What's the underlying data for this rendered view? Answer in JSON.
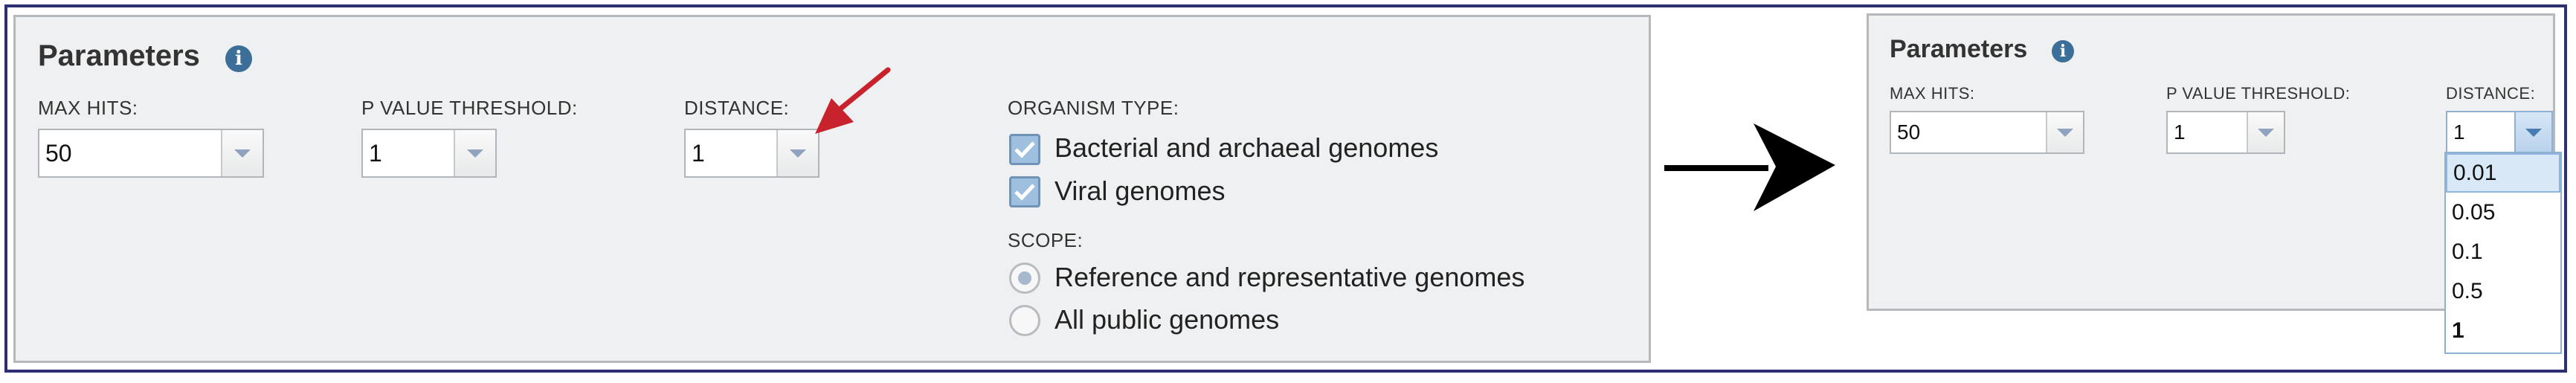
{
  "left_panel": {
    "title": "Parameters",
    "info_icon": "info-icon",
    "max_hits": {
      "label": "MAX HITS:",
      "value": "50"
    },
    "p_value": {
      "label": "P VALUE THRESHOLD:",
      "value": "1"
    },
    "distance": {
      "label": "DISTANCE:",
      "value": "1"
    },
    "organism_type": {
      "label": "ORGANISM TYPE:",
      "options": [
        {
          "label": "Bacterial and archaeal genomes",
          "checked": true
        },
        {
          "label": "Viral genomes",
          "checked": true
        }
      ]
    },
    "scope": {
      "label": "SCOPE:",
      "options": [
        {
          "label": "Reference and representative genomes",
          "selected": true
        },
        {
          "label": "All public genomes",
          "selected": false
        }
      ]
    }
  },
  "annotation": {
    "pointer_arrow_color": "#d22630",
    "flow_arrow_color": "#000000"
  },
  "right_panel": {
    "title": "Parameters",
    "max_hits": {
      "label": "MAX HITS:",
      "value": "50"
    },
    "p_value": {
      "label": "P VALUE THRESHOLD:",
      "value": "1"
    },
    "distance": {
      "label": "DISTANCE:",
      "value": "1",
      "open": true,
      "options": [
        "0.01",
        "0.05",
        "0.1",
        "0.5",
        "1"
      ],
      "highlighted": "0.01",
      "current": "1"
    }
  }
}
